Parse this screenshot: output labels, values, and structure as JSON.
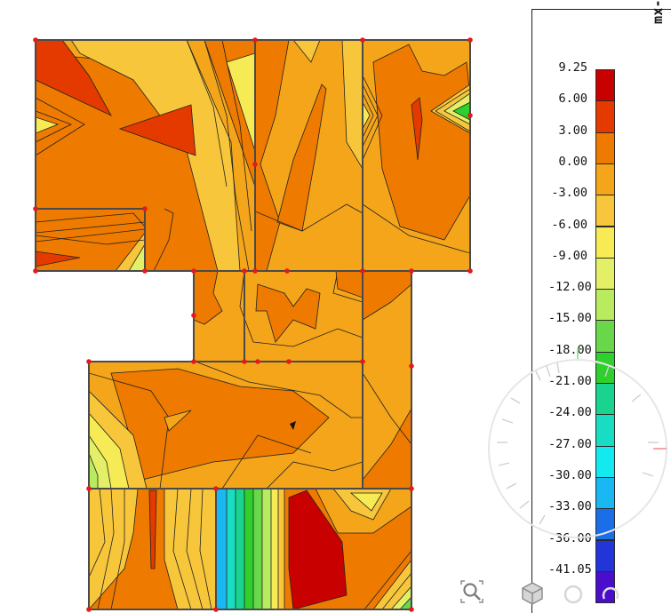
{
  "legend": {
    "title": "mx-min [kNm/m]",
    "labels": [
      "9.25",
      "6.00",
      "3.00",
      "0.00",
      "-3.00",
      "-6.00",
      "-9.00",
      "-12.00",
      "-15.00",
      "-18.00",
      "-21.00",
      "-24.00",
      "-27.00",
      "-30.00",
      "-33.00",
      "-36.00",
      "-41.05"
    ],
    "colors": [
      "#c80000",
      "#e43a00",
      "#ee7a00",
      "#f5a519",
      "#f7c63a",
      "#f6ea55",
      "#e3f067",
      "#b8eb5d",
      "#68d74a",
      "#2fcf2d",
      "#19d38e",
      "#18ddc2",
      "#13eaf0",
      "#19b8f2",
      "#1a6fe8",
      "#2235d8",
      "#4a0dcc"
    ]
  },
  "toolbar": {
    "icons": [
      "zoom-icon",
      "view-cube-icon",
      "orbit-icon",
      "rotate-icon"
    ]
  }
}
